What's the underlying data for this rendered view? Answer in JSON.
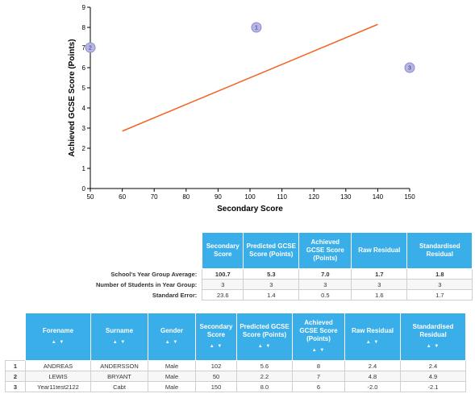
{
  "chart_data": {
    "type": "scatter",
    "xlabel": "Secondary Score",
    "ylabel": "Achieved GCSE Score (Points)",
    "xlim": [
      50,
      150
    ],
    "ylim": [
      0,
      9
    ],
    "x_ticks": [
      "50",
      "60",
      "70",
      "80",
      "90",
      "100",
      "110",
      "120",
      "130",
      "140",
      "150"
    ],
    "y_ticks": [
      "0",
      "1",
      "2",
      "3",
      "4",
      "5",
      "6",
      "7",
      "8",
      "9"
    ],
    "points": [
      {
        "label": "1",
        "x": 102,
        "y": 8
      },
      {
        "label": "2",
        "x": 50,
        "y": 7
      },
      {
        "label": "3",
        "x": 150,
        "y": 6
      }
    ],
    "trend_line": {
      "x": [
        60,
        140
      ],
      "y": [
        2.85,
        8.15
      ]
    },
    "colors": {
      "points": "#b5b5e6",
      "trend_line": "#f26522"
    }
  },
  "summary": {
    "headers": [
      "Secondary Score",
      "Predicted GCSE Score (Points)",
      "Achieved GCSE Score (Points)",
      "Raw Residual",
      "Standardised Residual"
    ],
    "rows": [
      {
        "label": "School's Year Group Average:",
        "values": [
          "100.7",
          "5.3",
          "7.0",
          "1.7",
          "1.8"
        ]
      },
      {
        "label": "Number of Students in Year Group:",
        "values": [
          "3",
          "3",
          "3",
          "3",
          "3"
        ]
      },
      {
        "label": "Standard Error:",
        "values": [
          "23.6",
          "1.4",
          "0.5",
          "1.6",
          "1.7"
        ]
      }
    ]
  },
  "students": {
    "headers": [
      "Forename",
      "Surname",
      "Gender",
      "Secondary Score",
      "Predicted GCSE Score (Points)",
      "Achieved GCSE Score (Points)",
      "Raw Residual",
      "Standardised Residual"
    ],
    "sort_arrows": "▲ ▼",
    "rows": [
      {
        "index": "1",
        "cells": [
          "ANDREAS",
          "ANDERSSON",
          "Male",
          "102",
          "5.6",
          "8",
          "2.4",
          "2.4"
        ]
      },
      {
        "index": "2",
        "cells": [
          "LEWIS",
          "BRYANT",
          "Male",
          "50",
          "2.2",
          "7",
          "4.8",
          "4.9"
        ]
      },
      {
        "index": "3",
        "cells": [
          "Year11test2122",
          "Cabt",
          "Male",
          "150",
          "8.0",
          "6",
          "-2.0",
          "-2.1"
        ]
      }
    ]
  },
  "colors": {
    "header_bg": "#3aaee8",
    "header_text": "#ffffff"
  }
}
